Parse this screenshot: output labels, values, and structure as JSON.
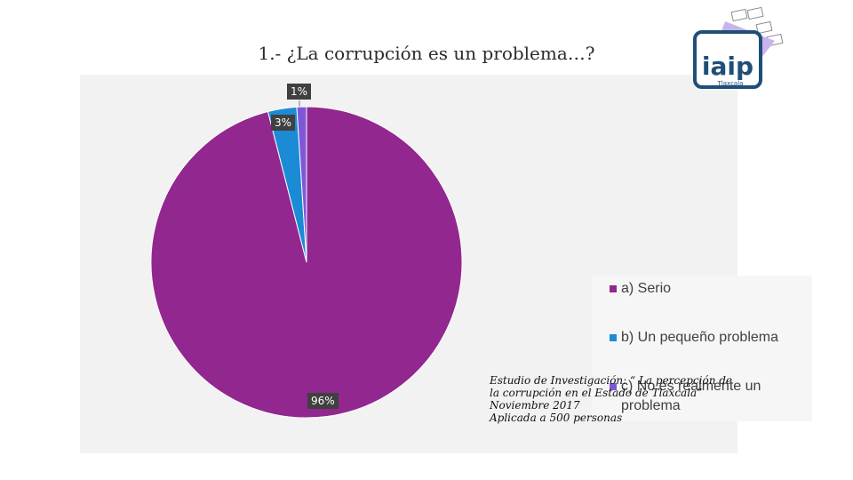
{
  "chart_data": {
    "type": "pie",
    "title": "1.- ¿La corrupción es un problema…?",
    "categories": [
      "a) Serio",
      "b) Un pequeño problema",
      "c) No es realmente un problema"
    ],
    "values": [
      96,
      3,
      1
    ],
    "data_labels": [
      "96%",
      "3%",
      "1%"
    ],
    "colors": [
      "#92278f",
      "#1b8bd6",
      "#7e57d9"
    ],
    "legend_position": "right"
  },
  "note": {
    "line1": "Estudio de Investigación: “ La percepción de",
    "line2": "la corrupción en el Estado de Tlaxcala”",
    "line3": "Noviembre 2017",
    "line4": "Aplicada a 500 personas"
  },
  "logo": {
    "text": "iaip",
    "subtext": "Tlaxcala"
  }
}
